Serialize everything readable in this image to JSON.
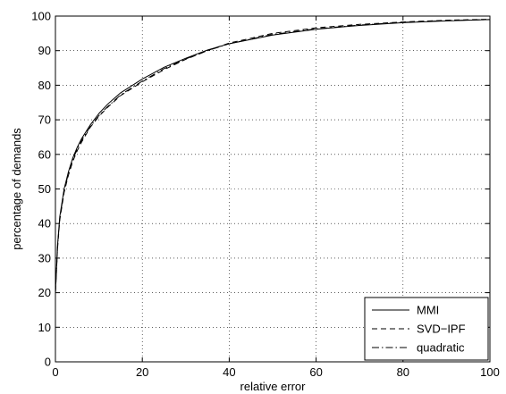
{
  "chart_data": {
    "type": "line",
    "xlabel": "relative error",
    "ylabel": "percentage of demands",
    "xlim": [
      0,
      100
    ],
    "ylim": [
      0,
      100
    ],
    "xticks": [
      0,
      20,
      40,
      60,
      80,
      100
    ],
    "yticks": [
      0,
      10,
      20,
      30,
      40,
      50,
      60,
      70,
      80,
      90,
      100
    ],
    "grid": true,
    "legend_position": "bottom-right",
    "x": [
      0,
      0.5,
      1,
      2,
      3,
      4,
      5,
      6,
      8,
      10,
      12,
      15,
      20,
      25,
      30,
      35,
      40,
      50,
      60,
      70,
      80,
      90,
      100
    ],
    "series": [
      {
        "name": "MMI",
        "style": "solid",
        "color": "#000000",
        "values": [
          20,
          34,
          42,
          50,
          55,
          59,
          62,
          64.5,
          68.5,
          71.8,
          74.5,
          77.8,
          81.8,
          85.2,
          87.8,
          90.2,
          92.0,
          94.5,
          96.2,
          97.3,
          98.1,
          98.6,
          99.0
        ]
      },
      {
        "name": "SVD−IPF",
        "style": "dashed",
        "color": "#000000",
        "values": [
          20,
          33,
          41,
          49,
          54,
          58,
          61,
          63.5,
          67.8,
          71.0,
          73.6,
          77.0,
          81.0,
          84.5,
          87.5,
          90.0,
          92.2,
          95.0,
          96.6,
          97.6,
          98.3,
          98.8,
          99.1
        ]
      },
      {
        "name": "quadratic",
        "style": "dashdot",
        "color": "#000000",
        "values": [
          20,
          33.5,
          41.5,
          49.5,
          54.5,
          58.5,
          61.5,
          64,
          68,
          71.2,
          73.8,
          77.2,
          81.2,
          84.8,
          87.6,
          90.0,
          92.0,
          94.7,
          96.3,
          97.4,
          98.2,
          98.7,
          99.0
        ]
      }
    ]
  }
}
